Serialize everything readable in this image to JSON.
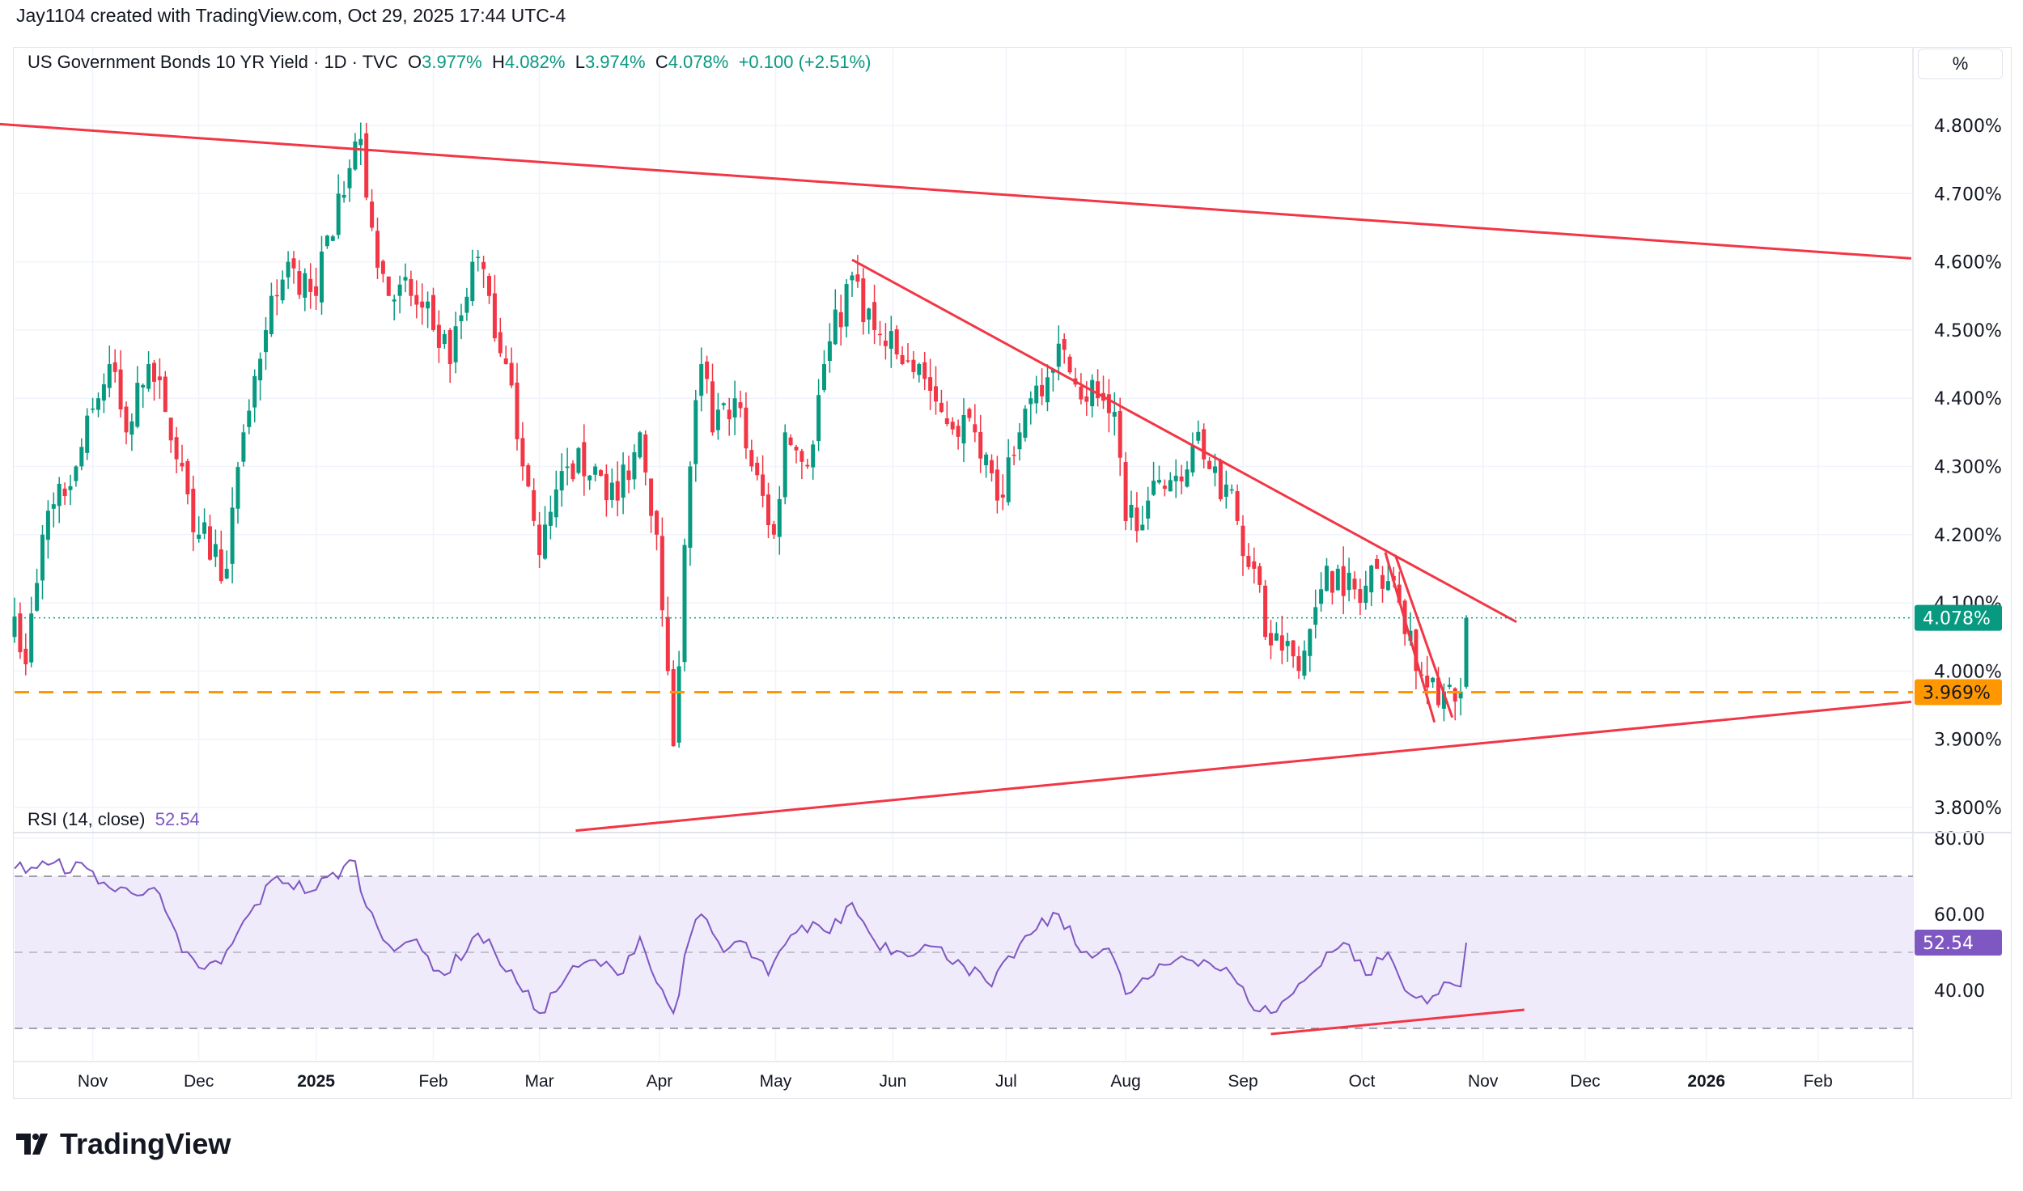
{
  "credit": "Jay1104 created with TradingView.com, Oct 29, 2025 17:44 UTC-4",
  "legend": {
    "symbol": "US Government Bonds 10 YR Yield · 1D · TVC",
    "o_label": "O",
    "o": "3.977%",
    "h_label": "H",
    "h": "4.082%",
    "l_label": "L",
    "l": "3.974%",
    "c_label": "C",
    "c": "4.078%",
    "change": "+0.100 (+2.51%)"
  },
  "scale_button": "%",
  "rsi_legend": {
    "label": "RSI (14, close)",
    "value": "52.54"
  },
  "logo": "TradingView",
  "colors": {
    "up": "#089981",
    "down": "#f23645",
    "trend": "#f23645",
    "support": "#ff9800",
    "rsi": "#7e57c2",
    "rsi_band": "#f0ebfa"
  },
  "chart_data": [
    {
      "type": "candlestick",
      "title": "US Government Bonds 10 YR Yield",
      "x_unit": "trading-day index",
      "xlim": [
        -2.5,
        340
      ],
      "ylim": [
        3.77,
        4.84
      ],
      "y_ticks": [
        "4.800%",
        "4.700%",
        "4.600%",
        "4.500%",
        "4.400%",
        "4.300%",
        "4.200%",
        "4.100%",
        "4.000%",
        "3.900%",
        "3.800%"
      ],
      "y_tick_values": [
        4.8,
        4.7,
        4.6,
        4.5,
        4.4,
        4.3,
        4.2,
        4.1,
        4.0,
        3.9,
        3.8
      ],
      "x_ticks": [
        {
          "label": "Nov",
          "i": 14
        },
        {
          "label": "Dec",
          "i": 33
        },
        {
          "label": "2025",
          "i": 54,
          "bold": true
        },
        {
          "label": "Feb",
          "i": 75
        },
        {
          "label": "Mar",
          "i": 94
        },
        {
          "label": "Apr",
          "i": 115.5
        },
        {
          "label": "May",
          "i": 136.3
        },
        {
          "label": "Jun",
          "i": 157.3
        },
        {
          "label": "Jul",
          "i": 177.6
        },
        {
          "label": "Aug",
          "i": 199
        },
        {
          "label": "Sep",
          "i": 220
        },
        {
          "label": "Oct",
          "i": 241.3
        },
        {
          "label": "Nov",
          "i": 263
        },
        {
          "label": "Dec",
          "i": 281.3
        },
        {
          "label": "2026",
          "i": 303,
          "bold": true
        },
        {
          "label": "Feb",
          "i": 323
        }
      ],
      "close_anchors": [
        [
          0,
          4.08
        ],
        [
          2,
          4.01
        ],
        [
          5,
          4.2
        ],
        [
          11,
          4.3
        ],
        [
          15,
          4.4
        ],
        [
          17,
          4.45
        ],
        [
          20,
          4.35
        ],
        [
          24,
          4.45
        ],
        [
          27,
          4.38
        ],
        [
          30,
          4.3
        ],
        [
          33,
          4.2
        ],
        [
          38,
          4.15
        ],
        [
          41,
          4.35
        ],
        [
          45,
          4.5
        ],
        [
          49,
          4.6
        ],
        [
          54,
          4.55
        ],
        [
          58,
          4.7
        ],
        [
          62,
          4.78
        ],
        [
          64,
          4.65
        ],
        [
          67,
          4.55
        ],
        [
          71,
          4.55
        ],
        [
          75,
          4.5
        ],
        [
          78,
          4.45
        ],
        [
          82,
          4.6
        ],
        [
          85,
          4.55
        ],
        [
          88,
          4.45
        ],
        [
          91,
          4.3
        ],
        [
          94,
          4.17
        ],
        [
          99,
          4.3
        ],
        [
          104,
          4.3
        ],
        [
          108,
          4.25
        ],
        [
          112,
          4.35
        ],
        [
          115,
          4.2
        ],
        [
          117,
          4.0
        ],
        [
          118,
          3.89
        ],
        [
          121,
          4.3
        ],
        [
          123,
          4.45
        ],
        [
          125,
          4.35
        ],
        [
          129,
          4.4
        ],
        [
          132,
          4.3
        ],
        [
          136,
          4.2
        ],
        [
          138,
          4.35
        ],
        [
          142,
          4.3
        ],
        [
          145,
          4.45
        ],
        [
          150,
          4.58
        ],
        [
          154,
          4.5
        ],
        [
          159,
          4.45
        ],
        [
          162,
          4.45
        ],
        [
          166,
          4.38
        ],
        [
          172,
          4.35
        ],
        [
          176,
          4.25
        ],
        [
          180,
          4.35
        ],
        [
          182,
          4.4
        ],
        [
          187,
          4.48
        ],
        [
          190,
          4.42
        ],
        [
          194,
          4.4
        ],
        [
          197,
          4.38
        ],
        [
          199,
          4.22
        ],
        [
          203,
          4.25
        ],
        [
          207,
          4.28
        ],
        [
          211,
          4.33
        ],
        [
          215,
          4.3
        ],
        [
          219,
          4.22
        ],
        [
          222,
          4.15
        ],
        [
          224,
          4.05
        ],
        [
          227,
          4.03
        ],
        [
          231,
          4.03
        ],
        [
          234,
          4.12
        ],
        [
          237,
          4.15
        ],
        [
          241,
          4.1
        ],
        [
          244,
          4.15
        ],
        [
          248,
          4.1
        ],
        [
          251,
          4.0
        ],
        [
          255,
          3.95
        ],
        [
          257,
          3.98
        ],
        [
          259,
          3.97
        ],
        [
          260,
          4.078
        ]
      ],
      "last_price": 4.078,
      "last_price_label": "4.078%",
      "support_level": 3.969,
      "support_label": "3.969%",
      "trendlines": [
        {
          "name": "upper-resistance",
          "points": [
            [
              -2.8,
              4.802
            ],
            [
              339.7,
              4.605
            ]
          ]
        },
        {
          "name": "descending-resistance",
          "points": [
            [
              150,
              4.603
            ],
            [
              269,
              4.072
            ]
          ]
        },
        {
          "name": "ascending-support",
          "points": [
            [
              100.5,
              3.766
            ],
            [
              339.7,
              3.955
            ]
          ]
        },
        {
          "name": "wedge-left",
          "points": [
            [
              245.5,
              4.174
            ],
            [
              254.3,
              3.925
            ]
          ]
        },
        {
          "name": "wedge-right",
          "points": [
            [
              247.3,
              4.17
            ],
            [
              257.5,
              3.932
            ]
          ]
        }
      ]
    },
    {
      "type": "line",
      "title": "RSI (14, close)",
      "ylim": [
        24,
        82
      ],
      "y_ticks": [
        "80.00",
        "60.00",
        "40.00"
      ],
      "y_tick_values": [
        80,
        60,
        40
      ],
      "bands": [
        30,
        70
      ],
      "midline": 50,
      "anchors": [
        [
          0,
          72
        ],
        [
          6,
          73
        ],
        [
          13,
          72
        ],
        [
          18,
          66
        ],
        [
          25,
          67
        ],
        [
          30,
          50
        ],
        [
          33,
          46
        ],
        [
          37,
          47
        ],
        [
          42,
          60
        ],
        [
          47,
          70
        ],
        [
          53,
          66
        ],
        [
          61,
          74
        ],
        [
          63,
          62
        ],
        [
          67,
          52
        ],
        [
          71,
          53
        ],
        [
          77,
          44
        ],
        [
          83,
          55
        ],
        [
          86,
          50
        ],
        [
          90,
          42
        ],
        [
          94,
          34
        ],
        [
          99,
          44
        ],
        [
          104,
          48
        ],
        [
          108,
          44
        ],
        [
          112,
          54
        ],
        [
          115,
          42
        ],
        [
          118,
          34
        ],
        [
          121,
          54
        ],
        [
          123,
          60
        ],
        [
          127,
          50
        ],
        [
          130,
          53
        ],
        [
          135,
          44
        ],
        [
          138,
          52
        ],
        [
          143,
          58
        ],
        [
          146,
          55
        ],
        [
          150,
          63
        ],
        [
          154,
          53
        ],
        [
          159,
          50
        ],
        [
          163,
          52
        ],
        [
          169,
          48
        ],
        [
          175,
          41
        ],
        [
          180,
          52
        ],
        [
          183,
          56
        ],
        [
          187,
          60
        ],
        [
          191,
          50
        ],
        [
          196,
          51
        ],
        [
          199,
          39
        ],
        [
          204,
          44
        ],
        [
          209,
          49
        ],
        [
          213,
          48
        ],
        [
          218,
          44
        ],
        [
          221,
          37
        ],
        [
          225,
          34
        ],
        [
          228,
          38
        ],
        [
          232,
          44
        ],
        [
          235,
          50
        ],
        [
          239,
          52
        ],
        [
          242,
          44
        ],
        [
          246,
          50
        ],
        [
          249,
          40
        ],
        [
          251,
          38
        ],
        [
          255,
          39
        ],
        [
          257,
          42
        ],
        [
          259,
          41
        ],
        [
          260,
          52.54
        ]
      ],
      "last_value_label": "52.54",
      "trendline": {
        "points": [
          [
            225,
            28.5
          ],
          [
            270.4,
            34.9
          ]
        ]
      }
    }
  ]
}
